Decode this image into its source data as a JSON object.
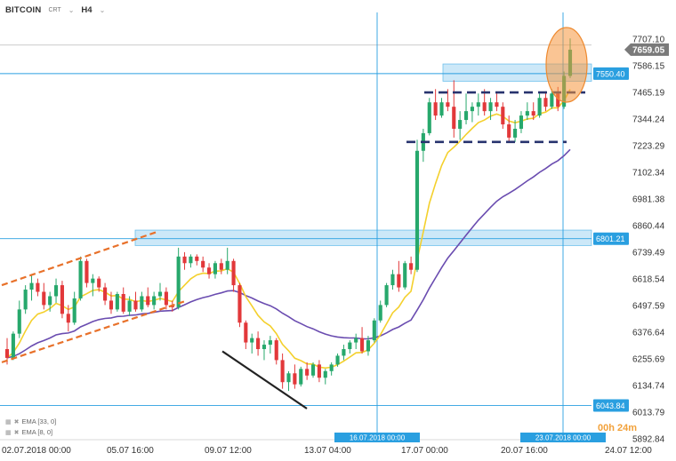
{
  "header": {
    "symbol": "BITCOIN",
    "source": "CRT",
    "timeframe": "H4"
  },
  "indicators": [
    {
      "label": "EMA [33, 0]",
      "color": "#6a4cb0"
    },
    {
      "label": "EMA [8, 0]",
      "color": "#f4d02c"
    }
  ],
  "countdown": "00h 24m",
  "chart_data": {
    "type": "candlestick",
    "title": "BITCOIN H4",
    "ylim": [
      5892.84,
      7707.1
    ],
    "y_ticks": [
      "7707.10",
      "7586.15",
      "7465.19",
      "7344.24",
      "7223.29",
      "7102.34",
      "6981.38",
      "6860.44",
      "6739.49",
      "6618.54",
      "6497.59",
      "6376.64",
      "6255.69",
      "6134.74",
      "6013.79",
      "5892.84"
    ],
    "x_ticks": [
      "02.07.2018  00:00",
      "05.07  16:00",
      "09.07  12:00",
      "13.07  04:00",
      "17.07  00:00",
      "20.07  16:00",
      "24.07  12:00"
    ],
    "current_price": "7659.05",
    "levels": [
      {
        "price": 7550.4,
        "label": "7550.40"
      },
      {
        "price": 6801.21,
        "label": "6801.21"
      },
      {
        "price": 6043.84,
        "label": "6043.84"
      }
    ],
    "vertical_markers": [
      "16.07.2018 00:00",
      "23.07.2018 00:00"
    ],
    "ohlc": [
      [
        6300,
        6350,
        6230,
        6260
      ],
      [
        6260,
        6380,
        6250,
        6370
      ],
      [
        6370,
        6520,
        6350,
        6480
      ],
      [
        6480,
        6590,
        6460,
        6570
      ],
      [
        6570,
        6640,
        6520,
        6600
      ],
      [
        6600,
        6620,
        6540,
        6560
      ],
      [
        6560,
        6600,
        6480,
        6500
      ],
      [
        6500,
        6560,
        6470,
        6540
      ],
      [
        6540,
        6620,
        6510,
        6590
      ],
      [
        6590,
        6610,
        6440,
        6460
      ],
      [
        6460,
        6500,
        6380,
        6420
      ],
      [
        6420,
        6560,
        6410,
        6530
      ],
      [
        6530,
        6720,
        6520,
        6700
      ],
      [
        6700,
        6710,
        6580,
        6600
      ],
      [
        6600,
        6640,
        6540,
        6620
      ],
      [
        6620,
        6630,
        6560,
        6580
      ],
      [
        6580,
        6600,
        6500,
        6520
      ],
      [
        6520,
        6560,
        6460,
        6480
      ],
      [
        6480,
        6560,
        6470,
        6550
      ],
      [
        6550,
        6580,
        6460,
        6470
      ],
      [
        6470,
        6540,
        6450,
        6520
      ],
      [
        6520,
        6560,
        6470,
        6480
      ],
      [
        6480,
        6560,
        6470,
        6540
      ],
      [
        6540,
        6580,
        6490,
        6500
      ],
      [
        6500,
        6560,
        6480,
        6540
      ],
      [
        6540,
        6600,
        6520,
        6560
      ],
      [
        6560,
        6580,
        6480,
        6500
      ],
      [
        6500,
        6520,
        6470,
        6490
      ],
      [
        6490,
        6760,
        6480,
        6720
      ],
      [
        6720,
        6740,
        6660,
        6690
      ],
      [
        6690,
        6730,
        6670,
        6720
      ],
      [
        6720,
        6730,
        6680,
        6700
      ],
      [
        6700,
        6720,
        6650,
        6670
      ],
      [
        6670,
        6690,
        6620,
        6640
      ],
      [
        6640,
        6700,
        6620,
        6690
      ],
      [
        6690,
        6710,
        6640,
        6660
      ],
      [
        6660,
        6760,
        6640,
        6700
      ],
      [
        6700,
        6710,
        6560,
        6590
      ],
      [
        6590,
        6600,
        6400,
        6420
      ],
      [
        6420,
        6430,
        6300,
        6330
      ],
      [
        6330,
        6370,
        6280,
        6350
      ],
      [
        6350,
        6380,
        6270,
        6300
      ],
      [
        6300,
        6340,
        6250,
        6320
      ],
      [
        6320,
        6360,
        6280,
        6340
      ],
      [
        6340,
        6350,
        6230,
        6250
      ],
      [
        6250,
        6280,
        6120,
        6150
      ],
      [
        6150,
        6200,
        6110,
        6190
      ],
      [
        6190,
        6230,
        6120,
        6140
      ],
      [
        6140,
        6220,
        6130,
        6210
      ],
      [
        6210,
        6240,
        6160,
        6180
      ],
      [
        6180,
        6240,
        6170,
        6230
      ],
      [
        6230,
        6250,
        6150,
        6170
      ],
      [
        6170,
        6210,
        6140,
        6200
      ],
      [
        6200,
        6240,
        6180,
        6230
      ],
      [
        6230,
        6280,
        6220,
        6270
      ],
      [
        6270,
        6320,
        6250,
        6300
      ],
      [
        6300,
        6340,
        6280,
        6330
      ],
      [
        6330,
        6370,
        6300,
        6350
      ],
      [
        6350,
        6400,
        6280,
        6290
      ],
      [
        6290,
        6360,
        6270,
        6340
      ],
      [
        6340,
        6440,
        6330,
        6430
      ],
      [
        6430,
        6520,
        6420,
        6500
      ],
      [
        6500,
        6600,
        6490,
        6590
      ],
      [
        6590,
        6660,
        6570,
        6640
      ],
      [
        6640,
        6700,
        6560,
        6580
      ],
      [
        6580,
        6700,
        6570,
        6690
      ],
      [
        6690,
        6720,
        6640,
        6660
      ],
      [
        6660,
        7250,
        6650,
        7200
      ],
      [
        7200,
        7300,
        7150,
        7280
      ],
      [
        7280,
        7440,
        7270,
        7420
      ],
      [
        7420,
        7480,
        7340,
        7360
      ],
      [
        7360,
        7440,
        7350,
        7420
      ],
      [
        7420,
        7480,
        7380,
        7400
      ],
      [
        7400,
        7520,
        7260,
        7300
      ],
      [
        7300,
        7380,
        7250,
        7340
      ],
      [
        7340,
        7460,
        7320,
        7380
      ],
      [
        7380,
        7420,
        7330,
        7400
      ],
      [
        7400,
        7460,
        7360,
        7420
      ],
      [
        7420,
        7480,
        7360,
        7380
      ],
      [
        7380,
        7440,
        7340,
        7420
      ],
      [
        7420,
        7460,
        7380,
        7400
      ],
      [
        7400,
        7420,
        7300,
        7320
      ],
      [
        7320,
        7360,
        7240,
        7260
      ],
      [
        7260,
        7340,
        7240,
        7300
      ],
      [
        7300,
        7380,
        7280,
        7360
      ],
      [
        7360,
        7420,
        7340,
        7380
      ],
      [
        7380,
        7420,
        7340,
        7360
      ],
      [
        7360,
        7460,
        7350,
        7440
      ],
      [
        7440,
        7470,
        7380,
        7400
      ],
      [
        7400,
        7480,
        7390,
        7460
      ],
      [
        7460,
        7490,
        7380,
        7400
      ],
      [
        7400,
        7560,
        7390,
        7540
      ],
      [
        7540,
        7710,
        7530,
        7659
      ]
    ],
    "series": [
      {
        "name": "EMA [8, 0]",
        "color": "#f4d02c"
      },
      {
        "name": "EMA [33, 0]",
        "color": "#6a4cb0"
      }
    ]
  }
}
